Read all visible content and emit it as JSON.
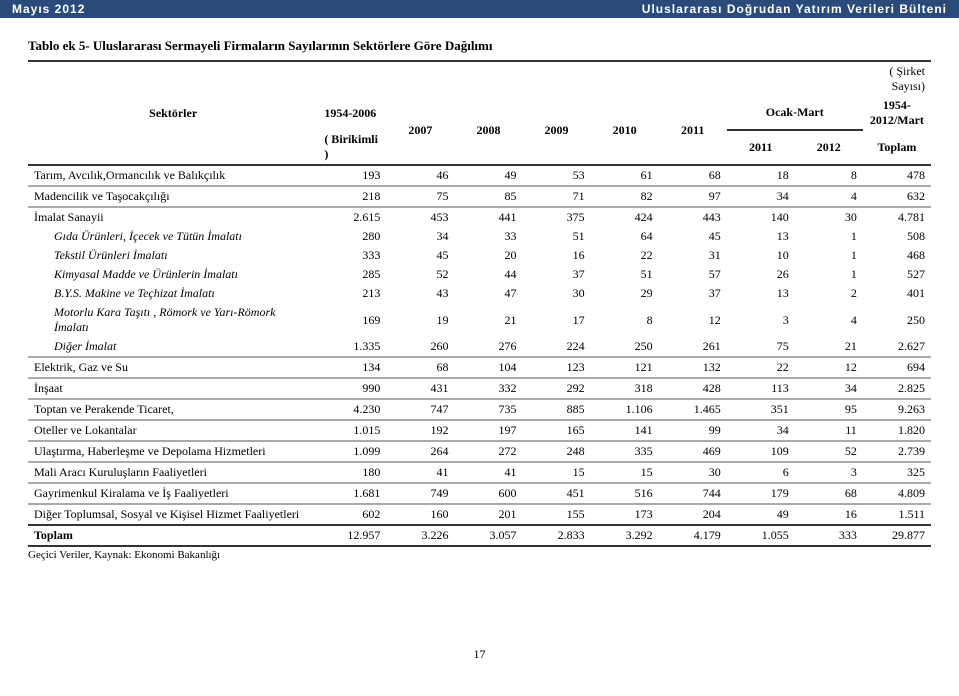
{
  "header": {
    "left": "Mayıs 2012",
    "right": "Uluslararası Doğrudan Yatırım Verileri Bülteni"
  },
  "table": {
    "title": "Tablo ek 5- Uluslararası Sermayeli Firmaların Sayılarının Sektörlere Göre Dağılımı",
    "topRight": "( Şirket Sayısı)",
    "headers": {
      "sektorler": "Sektörler",
      "col1954_2006": "1954-2006",
      "birikimli": "( Birikimli )",
      "y2007": "2007",
      "y2008": "2008",
      "y2009": "2009",
      "y2010": "2010",
      "y2011": "2011",
      "ocakMart": "Ocak-Mart",
      "om2011": "2011",
      "om2012": "2012",
      "col1954_2012": "1954-2012/Mart",
      "toplam": "Toplam"
    },
    "rows": [
      {
        "label": "Tarım, Avcılık,Ormancılık ve Balıkçılık",
        "v": [
          "193",
          "46",
          "49",
          "53",
          "61",
          "68",
          "18",
          "8",
          "478"
        ],
        "indent": false,
        "sep": true
      },
      {
        "label": "Madencilik ve Taşocakçılığı",
        "v": [
          "218",
          "75",
          "85",
          "71",
          "82",
          "97",
          "34",
          "4",
          "632"
        ],
        "indent": false,
        "sep": true
      },
      {
        "label": "İmalat Sanayii",
        "v": [
          "2.615",
          "453",
          "441",
          "375",
          "424",
          "443",
          "140",
          "30",
          "4.781"
        ],
        "indent": false,
        "sep": false
      },
      {
        "label": "Gıda Ürünleri, İçecek ve Tütün İmalatı",
        "v": [
          "280",
          "34",
          "33",
          "51",
          "64",
          "45",
          "13",
          "1",
          "508"
        ],
        "indent": true,
        "sep": false
      },
      {
        "label": "Tekstil Ürünleri İmalatı",
        "v": [
          "333",
          "45",
          "20",
          "16",
          "22",
          "31",
          "10",
          "1",
          "468"
        ],
        "indent": true,
        "sep": false
      },
      {
        "label": "Kimyasal Madde ve Ürünlerin İmalatı",
        "v": [
          "285",
          "52",
          "44",
          "37",
          "51",
          "57",
          "26",
          "1",
          "527"
        ],
        "indent": true,
        "sep": false
      },
      {
        "label": "B.Y.S. Makine ve Teçhizat İmalatı",
        "v": [
          "213",
          "43",
          "47",
          "30",
          "29",
          "37",
          "13",
          "2",
          "401"
        ],
        "indent": true,
        "sep": false
      },
      {
        "label": "Motorlu Kara Taşıtı , Römork ve Yarı-Römork İmalatı",
        "v": [
          "169",
          "19",
          "21",
          "17",
          "8",
          "12",
          "3",
          "4",
          "250"
        ],
        "indent": true,
        "sep": false
      },
      {
        "label": "Diğer İmalat",
        "v": [
          "1.335",
          "260",
          "276",
          "224",
          "250",
          "261",
          "75",
          "21",
          "2.627"
        ],
        "indent": true,
        "sep": true
      },
      {
        "label": "Elektrik, Gaz ve Su",
        "v": [
          "134",
          "68",
          "104",
          "123",
          "121",
          "132",
          "22",
          "12",
          "694"
        ],
        "indent": false,
        "sep": true
      },
      {
        "label": "İnşaat",
        "v": [
          "990",
          "431",
          "332",
          "292",
          "318",
          "428",
          "113",
          "34",
          "2.825"
        ],
        "indent": false,
        "sep": true
      },
      {
        "label": "Toptan ve Perakende Ticaret,",
        "v": [
          "4.230",
          "747",
          "735",
          "885",
          "1.106",
          "1.465",
          "351",
          "95",
          "9.263"
        ],
        "indent": false,
        "sep": true
      },
      {
        "label": "Oteller ve Lokantalar",
        "v": [
          "1.015",
          "192",
          "197",
          "165",
          "141",
          "99",
          "34",
          "11",
          "1.820"
        ],
        "indent": false,
        "sep": true
      },
      {
        "label": "Ulaştırma, Haberleşme ve Depolama Hizmetleri",
        "v": [
          "1.099",
          "264",
          "272",
          "248",
          "335",
          "469",
          "109",
          "52",
          "2.739"
        ],
        "indent": false,
        "sep": true
      },
      {
        "label": "Mali Aracı Kuruluşların Faaliyetleri",
        "v": [
          "180",
          "41",
          "41",
          "15",
          "15",
          "30",
          "6",
          "3",
          "325"
        ],
        "indent": false,
        "sep": true
      },
      {
        "label": "Gayrimenkul Kiralama ve İş Faaliyetleri",
        "v": [
          "1.681",
          "749",
          "600",
          "451",
          "516",
          "744",
          "179",
          "68",
          "4.809"
        ],
        "indent": false,
        "sep": true
      },
      {
        "label": "Diğer Toplumsal, Sosyal ve Kişisel Hizmet Faaliyetleri",
        "v": [
          "602",
          "160",
          "201",
          "155",
          "173",
          "204",
          "49",
          "16",
          "1.511"
        ],
        "indent": false,
        "sep": false
      }
    ],
    "totalRow": {
      "label": "Toplam",
      "v": [
        "12.957",
        "3.226",
        "3.057",
        "2.833",
        "3.292",
        "4.179",
        "1.055",
        "333",
        "29.877"
      ]
    },
    "sourceNote": "Geçici Veriler, Kaynak: Ekonomi Bakanlığı"
  },
  "pageNumber": "17",
  "style": {
    "headerBg": "#2a4a7a",
    "headerText": "#ffffff",
    "borderColor": "#333333",
    "sepColor": "#aaaaaa",
    "fontBody": "Times New Roman",
    "fontHeader": "Arial",
    "fontSizeBody": 12,
    "fontSizeTitle": 13
  }
}
